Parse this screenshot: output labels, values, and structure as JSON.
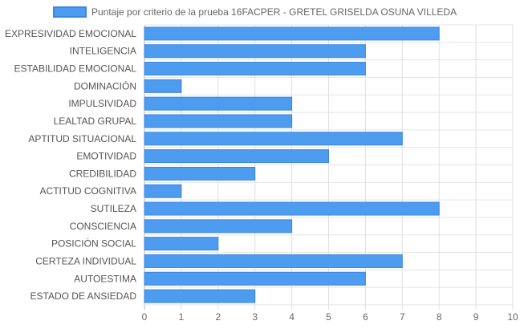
{
  "chart_data": {
    "type": "bar",
    "orientation": "horizontal",
    "title": "",
    "xlabel": "",
    "ylabel": "",
    "legend": {
      "position": "top-center"
    },
    "grid": true,
    "xlim": [
      0,
      10
    ],
    "x_ticks": [
      0,
      1,
      2,
      3,
      4,
      5,
      6,
      7,
      8,
      9,
      10
    ],
    "categories": [
      "EXPRESIVIDAD EMOCIONAL",
      "INTELIGENCIA",
      "ESTABILIDAD EMOCIONAL",
      "DOMINACIÓN",
      "IMPULSIVIDAD",
      "LEALTAD GRUPAL",
      "APTITUD SITUACIONAL",
      "EMOTIVIDAD",
      "CREDIBILIDAD",
      "ACTITUD COGNITIVA",
      "SUTILEZA",
      "CONSCIENCIA",
      "POSICIÓN SOCIAL",
      "CERTEZA INDIVIDUAL",
      "AUTOESTIMA",
      "ESTADO DE ANSIEDAD"
    ],
    "series": [
      {
        "name": "Puntaje por criterio de la prueba 16FACPER - GRETEL GRISELDA OSUNA VILLEDA",
        "color": "#4e9cf0",
        "border_color": "#3b86e0",
        "values": [
          8,
          6,
          6,
          1,
          4,
          4,
          7,
          5,
          3,
          1,
          8,
          4,
          2,
          7,
          6,
          3
        ]
      }
    ]
  }
}
